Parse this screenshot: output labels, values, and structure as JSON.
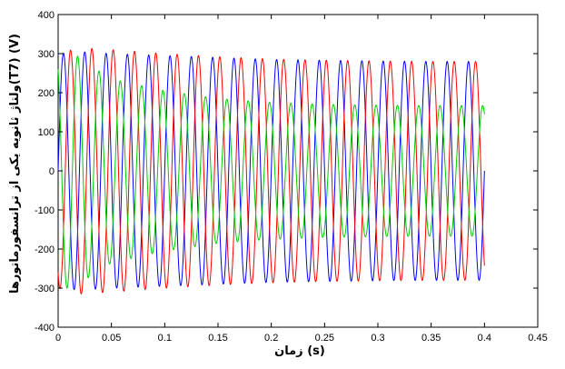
{
  "chart_data": {
    "type": "line",
    "title": "",
    "xlabel": "زمان (s)",
    "ylabel": "ولتاژ ثانويه يکی از ترانسفورماتورها(T7) (V)",
    "xlim": [
      0,
      0.45
    ],
    "ylim": [
      -400,
      400
    ],
    "xticks": [
      0,
      0.05,
      0.1,
      0.15,
      0.2,
      0.25,
      0.3,
      0.35,
      0.4,
      0.45
    ],
    "xtick_labels": [
      "0",
      "0.05",
      "0.1",
      "0.15",
      "0.2",
      "0.25",
      "0.3",
      "0.35",
      "0.4",
      "0.45"
    ],
    "yticks": [
      -400,
      -300,
      -200,
      -100,
      0,
      100,
      200,
      300,
      400
    ],
    "ytick_labels": [
      "-400",
      "-300",
      "-200",
      "-100",
      "0",
      "100",
      "200",
      "300",
      "400"
    ],
    "grid": false,
    "series": [
      {
        "color": "#0000ff",
        "frequency_hz": 50,
        "phase_deg": 0,
        "x": [
          0,
          0.02,
          0.05,
          0.1,
          0.15,
          0.2,
          0.25,
          0.3,
          0.35,
          0.4
        ],
        "amplitude": [
          300,
          305,
          300,
          295,
          290,
          285,
          283,
          281,
          280,
          280
        ]
      },
      {
        "color": "#ff0000",
        "frequency_hz": 50,
        "phase_deg": -120,
        "x": [
          0,
          0.02,
          0.05,
          0.1,
          0.15,
          0.2,
          0.25,
          0.3,
          0.35,
          0.4
        ],
        "amplitude": [
          300,
          315,
          310,
          300,
          292,
          286,
          283,
          281,
          280,
          280
        ]
      },
      {
        "color": "#00cc00",
        "frequency_hz": 50,
        "phase_deg": 120,
        "x": [
          0,
          0.015,
          0.03,
          0.05,
          0.1,
          0.15,
          0.2,
          0.25,
          0.3,
          0.35,
          0.4
        ],
        "amplitude": [
          300,
          300,
          270,
          235,
          205,
          185,
          175,
          170,
          168,
          167,
          167
        ]
      }
    ]
  }
}
